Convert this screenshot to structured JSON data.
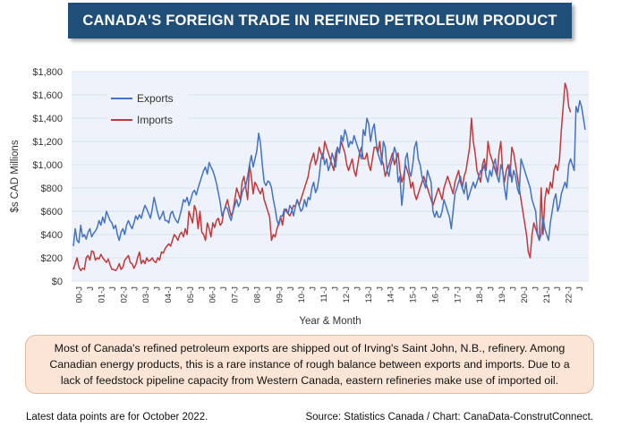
{
  "title": "CANADA'S FOREIGN TRADE IN REFINED PETROLEUM PRODUCT",
  "note": "Most of Canada's refined petroleum exports are shipped out of Irving's Saint John, N.B., refinery. Among Canadian energy products, this is a rare instance of rough balance between exports and imports. Due to a lack of feedstock pipeline capacity from Western Canada, eastern refineries make use of imported oil.",
  "footer_left": "Latest data points are for October 2022.",
  "footer_right": "Source: Statistics Canada / Chart: CanaData-ConstrutConnect.",
  "colors": {
    "exports": "#4472c4",
    "imports": "#c0393b",
    "plot_bg": "#eef3fb",
    "title_bg": "#1f4e79"
  },
  "chart_data": {
    "type": "line",
    "title": "CANADA'S FOREIGN TRADE IN REFINED PETROLEUM PRODUCT",
    "xlabel": "Year & Month",
    "ylabel": "$s CAD Millions",
    "ylim": [
      0,
      1800
    ],
    "yticks": [
      0,
      200,
      400,
      600,
      800,
      1000,
      1200,
      1400,
      1600,
      1800
    ],
    "ytick_labels": [
      "$0",
      "$200",
      "$400",
      "$600",
      "$800",
      "$1,000",
      "$1,200",
      "$1,400",
      "$1,600",
      "$1,800"
    ],
    "xtick_labels": [
      "00-J",
      "J",
      "01-J",
      "J",
      "02-J",
      "J",
      "03-J",
      "J",
      "04-J",
      "J",
      "05-J",
      "J",
      "06-J",
      "J",
      "07-J",
      "J",
      "08-J",
      "J",
      "09-J",
      "J",
      "10-J",
      "J",
      "11-J",
      "J",
      "12-J",
      "J",
      "13-J",
      "J",
      "14-J",
      "J",
      "15-J",
      "J",
      "16-J",
      "J",
      "17-J",
      "J",
      "18-J",
      "J",
      "19-J",
      "J",
      "20-J",
      "J",
      "21-J",
      "J",
      "22-J",
      "J"
    ],
    "grid": true,
    "legend": "top-left",
    "x_start": "2000-01",
    "x_end": "2022-10",
    "series": [
      {
        "name": "Exports",
        "color": "#4472c4",
        "values": [
          300,
          450,
          350,
          330,
          480,
          380,
          400,
          360,
          420,
          450,
          380,
          410,
          430,
          460,
          520,
          480,
          550,
          500,
          600,
          560,
          520,
          500,
          450,
          480,
          400,
          350,
          420,
          450,
          400,
          480,
          520,
          480,
          450,
          500,
          560,
          530,
          570,
          540,
          600,
          650,
          620,
          580,
          540,
          620,
          720,
          650,
          580,
          530,
          560,
          600,
          520,
          520,
          500,
          580,
          600,
          550,
          520,
          500,
          560,
          620,
          700,
          680,
          720,
          650,
          700,
          760,
          780,
          740,
          800,
          850,
          900,
          950,
          980,
          920,
          1020,
          980,
          950,
          900,
          840,
          760,
          680,
          560,
          600,
          640,
          620,
          560,
          520,
          600,
          650,
          700,
          640,
          680,
          760,
          800,
          820,
          900,
          1000,
          1080,
          980,
          1050,
          1120,
          1270,
          1180,
          1000,
          850,
          820,
          860,
          850,
          800,
          700,
          620,
          520,
          480,
          560,
          560,
          620,
          600,
          580,
          650,
          620,
          560,
          640,
          700,
          650,
          600,
          620,
          700,
          640,
          720,
          700,
          800,
          850,
          760,
          800,
          900,
          1050,
          1100,
          1000,
          1050,
          950,
          1000,
          1100,
          1050,
          980,
          1150,
          1100,
          1250,
          1200,
          1300,
          1250,
          1150,
          1200,
          1180,
          1250,
          1200,
          1150,
          1100,
          1050,
          1300,
          1250,
          1400,
          1350,
          1200,
          1300,
          1350,
          1200,
          1100,
          1050,
          1000,
          1200,
          1150,
          950,
          900,
          1000,
          1050,
          1150,
          1100,
          850,
          900,
          650,
          800,
          1050,
          1100,
          950,
          900,
          1000,
          1150,
          1200,
          1050,
          1000,
          900,
          850,
          800,
          950,
          900,
          850,
          600,
          550,
          600,
          550,
          550,
          600,
          700,
          650,
          600,
          550,
          450,
          600,
          750,
          800,
          850,
          900,
          800,
          750,
          850,
          700,
          750,
          800,
          850,
          800,
          850,
          900,
          950,
          950,
          1000,
          900,
          850,
          950,
          900,
          1000,
          1050,
          900,
          850,
          1000,
          950,
          800,
          700,
          900,
          1000,
          850,
          950,
          900,
          800,
          750,
          1050,
          1000,
          950,
          900,
          850,
          800,
          700,
          650,
          600,
          400,
          350,
          400,
          550,
          450,
          400,
          350,
          500,
          600,
          700,
          750,
          600,
          650,
          750,
          800,
          850,
          800,
          1000,
          1050,
          1000,
          950,
          1500,
          1450,
          1550,
          1500,
          1400,
          1300
        ]
      },
      {
        "name": "Imports",
        "color": "#c0393b",
        "values": [
          100,
          150,
          200,
          120,
          90,
          110,
          100,
          200,
          220,
          180,
          260,
          250,
          180,
          200,
          190,
          230,
          200,
          180,
          160,
          190,
          140,
          100,
          100,
          90,
          110,
          150,
          100,
          120,
          180,
          200,
          220,
          160,
          150,
          110,
          140,
          200,
          250,
          150,
          180,
          150,
          200,
          170,
          180,
          200,
          170,
          160,
          200,
          180,
          250,
          240,
          280,
          300,
          320,
          300,
          350,
          400,
          380,
          350,
          400,
          420,
          380,
          450,
          400,
          600,
          550,
          500,
          650,
          600,
          450,
          600,
          420,
          400,
          350,
          500,
          450,
          380,
          500,
          460,
          520,
          540,
          480,
          500,
          600,
          650,
          700,
          620,
          560,
          600,
          700,
          800,
          750,
          700,
          850,
          900,
          800,
          700,
          1000,
          900,
          750,
          850,
          820,
          780,
          750,
          800,
          700,
          650,
          600,
          550,
          350,
          400,
          380,
          450,
          500,
          550,
          480,
          600,
          620,
          580,
          560,
          600,
          650,
          640,
          700,
          650,
          700,
          750,
          800,
          850,
          900,
          1000,
          1050,
          1100,
          1000,
          1050,
          1150,
          1100,
          1050,
          1200,
          1150,
          1100,
          1050,
          1000,
          950,
          1100,
          1150,
          1100,
          1200,
          1150,
          1100,
          1000,
          950,
          1000,
          1050,
          950,
          900,
          1000,
          1100,
          1150,
          1050,
          1050,
          1100,
          1000,
          950,
          1050,
          1150,
          1150,
          1100,
          1200,
          1050,
          1000,
          900,
          950,
          1000,
          1050,
          1100,
          1000,
          1050,
          1100,
          950,
          850,
          900,
          1000,
          950,
          900,
          800,
          850,
          750,
          700,
          750,
          800,
          850,
          900,
          850,
          800,
          750,
          700,
          650,
          700,
          750,
          800,
          750,
          700,
          800,
          850,
          900,
          850,
          800,
          750,
          850,
          900,
          950,
          850,
          800,
          900,
          950,
          1050,
          1150,
          1400,
          1200,
          1100,
          950,
          900,
          850,
          1000,
          1050,
          950,
          1200,
          1100,
          1050,
          1000,
          950,
          900,
          1100,
          1200,
          950,
          850,
          950,
          1000,
          900,
          1150,
          1100,
          1000,
          900,
          800,
          700,
          600,
          500,
          400,
          250,
          200,
          400,
          500,
          450,
          400,
          350,
          800,
          400,
          700,
          800,
          750,
          850,
          800,
          950,
          1000,
          950,
          1050,
          1300,
          1500,
          1700,
          1650,
          1500,
          1450
        ]
      }
    ]
  }
}
